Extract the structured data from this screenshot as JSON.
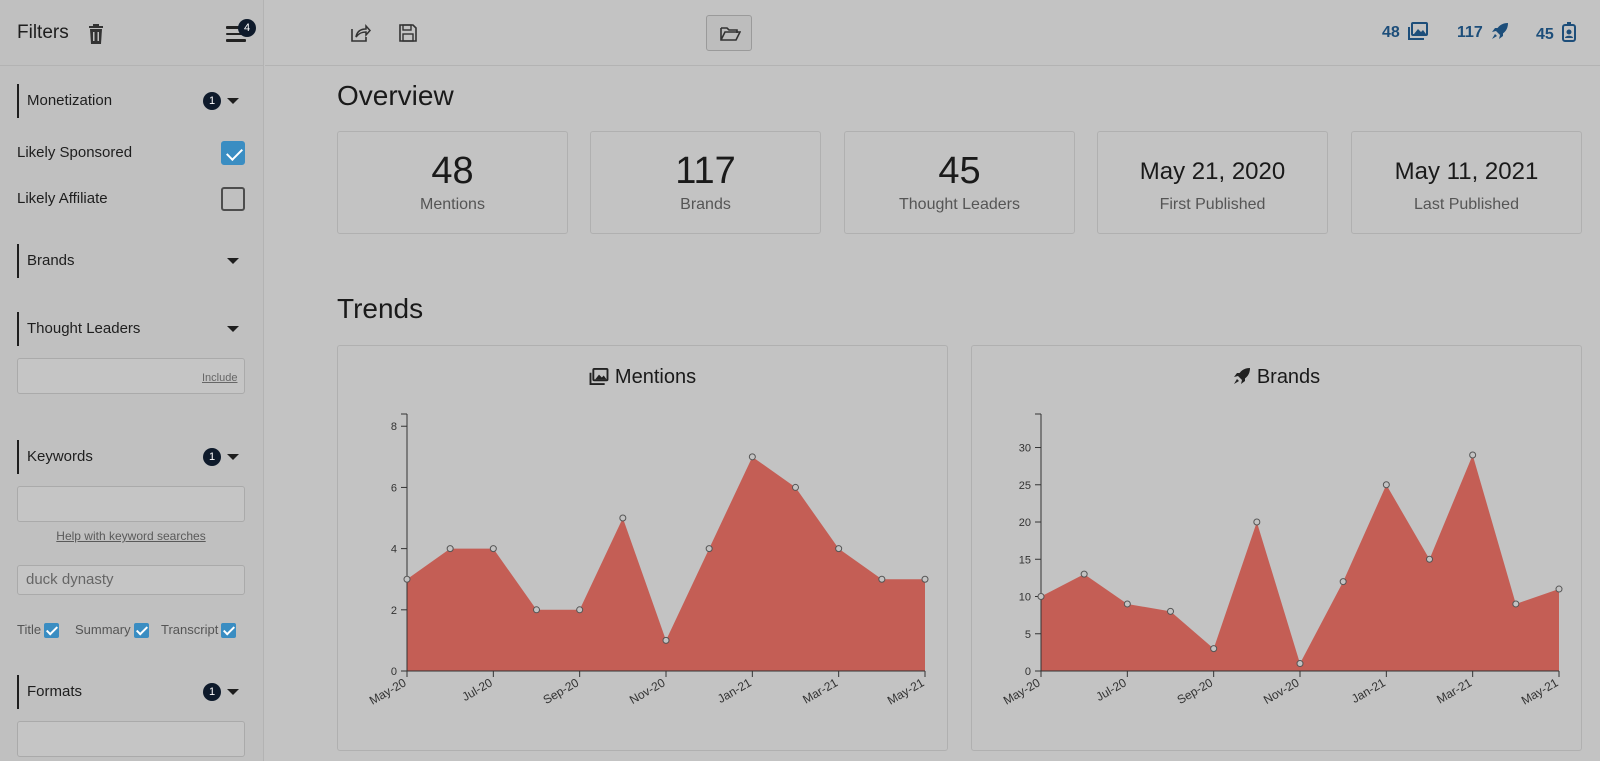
{
  "sidebar": {
    "title": "Filters",
    "menu_badge": "4",
    "monetization": {
      "label": "Monetization",
      "badge": "1"
    },
    "likely_sponsored": {
      "label": "Likely Sponsored",
      "checked": true
    },
    "likely_affiliate": {
      "label": "Likely Affiliate",
      "checked": false
    },
    "brands": {
      "label": "Brands"
    },
    "thought_leaders": {
      "label": "Thought Leaders",
      "include_label": "Include"
    },
    "keywords": {
      "label": "Keywords",
      "badge": "1",
      "help_link": "Help with keyword searches",
      "value": "duck dynasty",
      "scopes": [
        "Title",
        "Summary",
        "Transcript"
      ]
    },
    "formats": {
      "label": "Formats",
      "badge": "1"
    }
  },
  "topbar": {
    "stats": [
      {
        "value": "48",
        "icon": "images-icon"
      },
      {
        "value": "117",
        "icon": "rocket-icon"
      },
      {
        "value": "45",
        "icon": "id-badge-icon"
      }
    ]
  },
  "overview": {
    "heading": "Overview",
    "cards": [
      {
        "value": "48",
        "label": "Mentions"
      },
      {
        "value": "117",
        "label": "Brands"
      },
      {
        "value": "45",
        "label": "Thought Leaders"
      },
      {
        "value": "May 21, 2020",
        "label": "First Published"
      },
      {
        "value": "May 11, 2021",
        "label": "Last Published"
      }
    ]
  },
  "trends": {
    "heading": "Trends"
  },
  "chart_data": [
    {
      "type": "area",
      "title": "Mentions",
      "x_labels": [
        "May-20",
        "Jul-20",
        "Sep-20",
        "Nov-20",
        "Jan-21",
        "Mar-21",
        "May-21"
      ],
      "x_label_indices": [
        0,
        2,
        4,
        6,
        8,
        10,
        12
      ],
      "values": [
        3,
        4,
        4,
        2,
        2,
        5,
        1,
        4,
        7,
        6,
        4,
        3,
        3
      ],
      "yticks": [
        0,
        2,
        4,
        6,
        8
      ],
      "ylim": [
        0,
        8.4
      ],
      "color": "#c45e55"
    },
    {
      "type": "area",
      "title": "Brands",
      "x_labels": [
        "May-20",
        "Jul-20",
        "Sep-20",
        "Nov-20",
        "Jan-21",
        "Mar-21",
        "May-21"
      ],
      "x_label_indices": [
        0,
        2,
        4,
        6,
        8,
        10,
        12
      ],
      "values": [
        10,
        13,
        9,
        8,
        3,
        20,
        1,
        12,
        25,
        15,
        29,
        9,
        11
      ],
      "yticks": [
        0,
        5,
        10,
        15,
        20,
        25,
        30
      ],
      "ylim": [
        0,
        34.5
      ],
      "color": "#c45e55"
    }
  ]
}
